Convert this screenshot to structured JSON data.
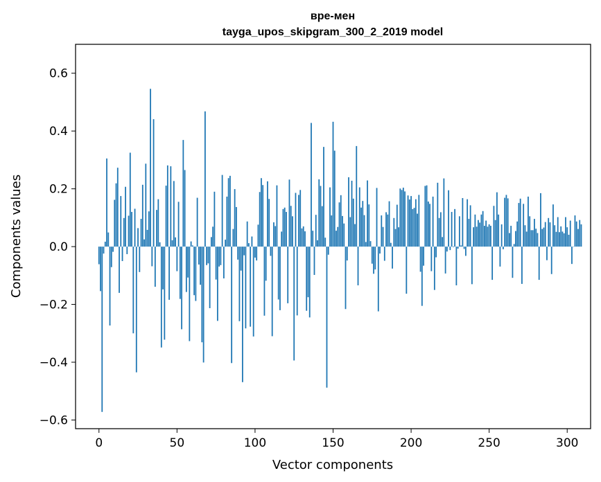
{
  "chart_data": {
    "type": "bar",
    "title": "вре-мен\ntayga_upos_skipgram_300_2_2019 model",
    "title_lines": [
      "вре-мен",
      "tayga_upos_skipgram_300_2_2019 model"
    ],
    "xlabel": "Vector components",
    "ylabel": "Components values",
    "xlim": [
      -15,
      315
    ],
    "ylim": [
      -0.63,
      0.7
    ],
    "xticks": [
      0,
      50,
      100,
      150,
      200,
      250,
      300
    ],
    "yticks": [
      -0.6,
      -0.4,
      -0.2,
      0.0,
      0.2,
      0.4,
      0.6
    ],
    "ytick_labels": [
      "−0.6",
      "−0.4",
      "−0.2",
      "0.0",
      "0.2",
      "0.4",
      "0.6"
    ],
    "grid": false,
    "bar_color": "#1f77b4",
    "values": [
      -0.061,
      -0.154,
      -0.572,
      -0.024,
      0.017,
      0.305,
      0.049,
      -0.273,
      -0.071,
      -0.018,
      0.162,
      0.219,
      0.273,
      -0.16,
      0.175,
      -0.05,
      0.099,
      0.207,
      -0.026,
      0.107,
      0.325,
      0.12,
      -0.3,
      0.131,
      -0.435,
      0.064,
      -0.088,
      0.096,
      0.214,
      0.025,
      0.287,
      0.058,
      0.122,
      0.546,
      -0.068,
      0.441,
      -0.139,
      0.127,
      0.164,
      0.015,
      -0.349,
      -0.148,
      -0.322,
      0.211,
      0.281,
      -0.184,
      0.278,
      0.022,
      0.227,
      0.032,
      -0.085,
      0.155,
      -0.181,
      -0.286,
      0.369,
      0.265,
      -0.157,
      -0.107,
      -0.327,
      0.018,
      0.004,
      -0.168,
      -0.188,
      0.169,
      -0.062,
      -0.132,
      -0.331,
      -0.401,
      0.468,
      -0.064,
      -0.058,
      -0.213,
      0.033,
      0.069,
      0.19,
      -0.114,
      -0.257,
      -0.069,
      -0.064,
      0.248,
      -0.11,
      0.024,
      0.173,
      0.237,
      0.245,
      -0.403,
      0.061,
      0.199,
      0.137,
      -0.045,
      -0.258,
      -0.083,
      -0.469,
      -0.03,
      -0.283,
      0.087,
      0.012,
      -0.277,
      0.035,
      -0.311,
      -0.038,
      -0.048,
      0.076,
      0.189,
      0.237,
      0.213,
      -0.239,
      -0.118,
      0.226,
      0.165,
      -0.032,
      -0.31,
      0.084,
      0.071,
      0.212,
      -0.183,
      -0.22,
      0.052,
      0.13,
      0.135,
      0.12,
      -0.196,
      0.232,
      0.141,
      0.105,
      -0.394,
      0.186,
      -0.238,
      0.179,
      0.196,
      0.063,
      0.07,
      0.053,
      -0.222,
      -0.175,
      -0.245,
      0.428,
      0.055,
      -0.098,
      0.11,
      0.022,
      0.233,
      0.21,
      0.14,
      0.345,
      0.031,
      -0.488,
      -0.028,
      0.205,
      0.108,
      0.432,
      0.332,
      0.055,
      0.068,
      0.153,
      0.178,
      0.106,
      0.08,
      -0.216,
      -0.048,
      0.24,
      0.102,
      0.228,
      0.166,
      0.078,
      0.348,
      -0.134,
      0.205,
      0.135,
      0.158,
      0.109,
      0.016,
      0.229,
      0.146,
      0.019,
      -0.059,
      -0.094,
      -0.079,
      0.203,
      -0.224,
      -0.024,
      0.108,
      0.068,
      -0.049,
      0.119,
      0.111,
      0.157,
      0.013,
      -0.076,
      0.099,
      0.061,
      0.145,
      0.067,
      0.201,
      0.196,
      0.204,
      0.191,
      -0.163,
      0.177,
      0.163,
      0.175,
      0.13,
      0.134,
      0.164,
      0.114,
      0.179,
      -0.087,
      -0.205,
      -0.066,
      0.21,
      0.212,
      0.156,
      0.148,
      -0.085,
      0.173,
      -0.15,
      -0.037,
      0.221,
      0.099,
      0.119,
      0.033,
      0.236,
      -0.093,
      -0.017,
      0.195,
      -0.012,
      0.12,
      -0.002,
      0.13,
      -0.134,
      -0.007,
      0.105,
      0.004,
      0.168,
      -0.008,
      -0.032,
      0.164,
      0.096,
      0.143,
      -0.13,
      0.067,
      0.111,
      0.069,
      0.092,
      0.083,
      0.111,
      0.123,
      0.072,
      0.09,
      0.069,
      0.077,
      0.072,
      -0.115,
      0.141,
      0.092,
      0.188,
      0.111,
      -0.069,
      0.077,
      -0.009,
      0.169,
      0.179,
      0.167,
      0.047,
      0.072,
      -0.108,
      0.009,
      0.054,
      0.087,
      0.151,
      0.166,
      -0.129,
      0.148,
      0.074,
      0.052,
      0.173,
      0.105,
      0.057,
      0.057,
      0.096,
      0.062,
      0.047,
      -0.115,
      0.185,
      0.061,
      0.066,
      0.085,
      -0.047,
      0.099,
      0.084,
      -0.095,
      0.146,
      0.074,
      0.051,
      0.102,
      0.05,
      0.07,
      0.052,
      0.046,
      0.102,
      0.067,
      0.041,
      0.09,
      -0.06,
      -0.001,
      0.108,
      0.087,
      0.061,
      0.092,
      0.077
    ]
  }
}
